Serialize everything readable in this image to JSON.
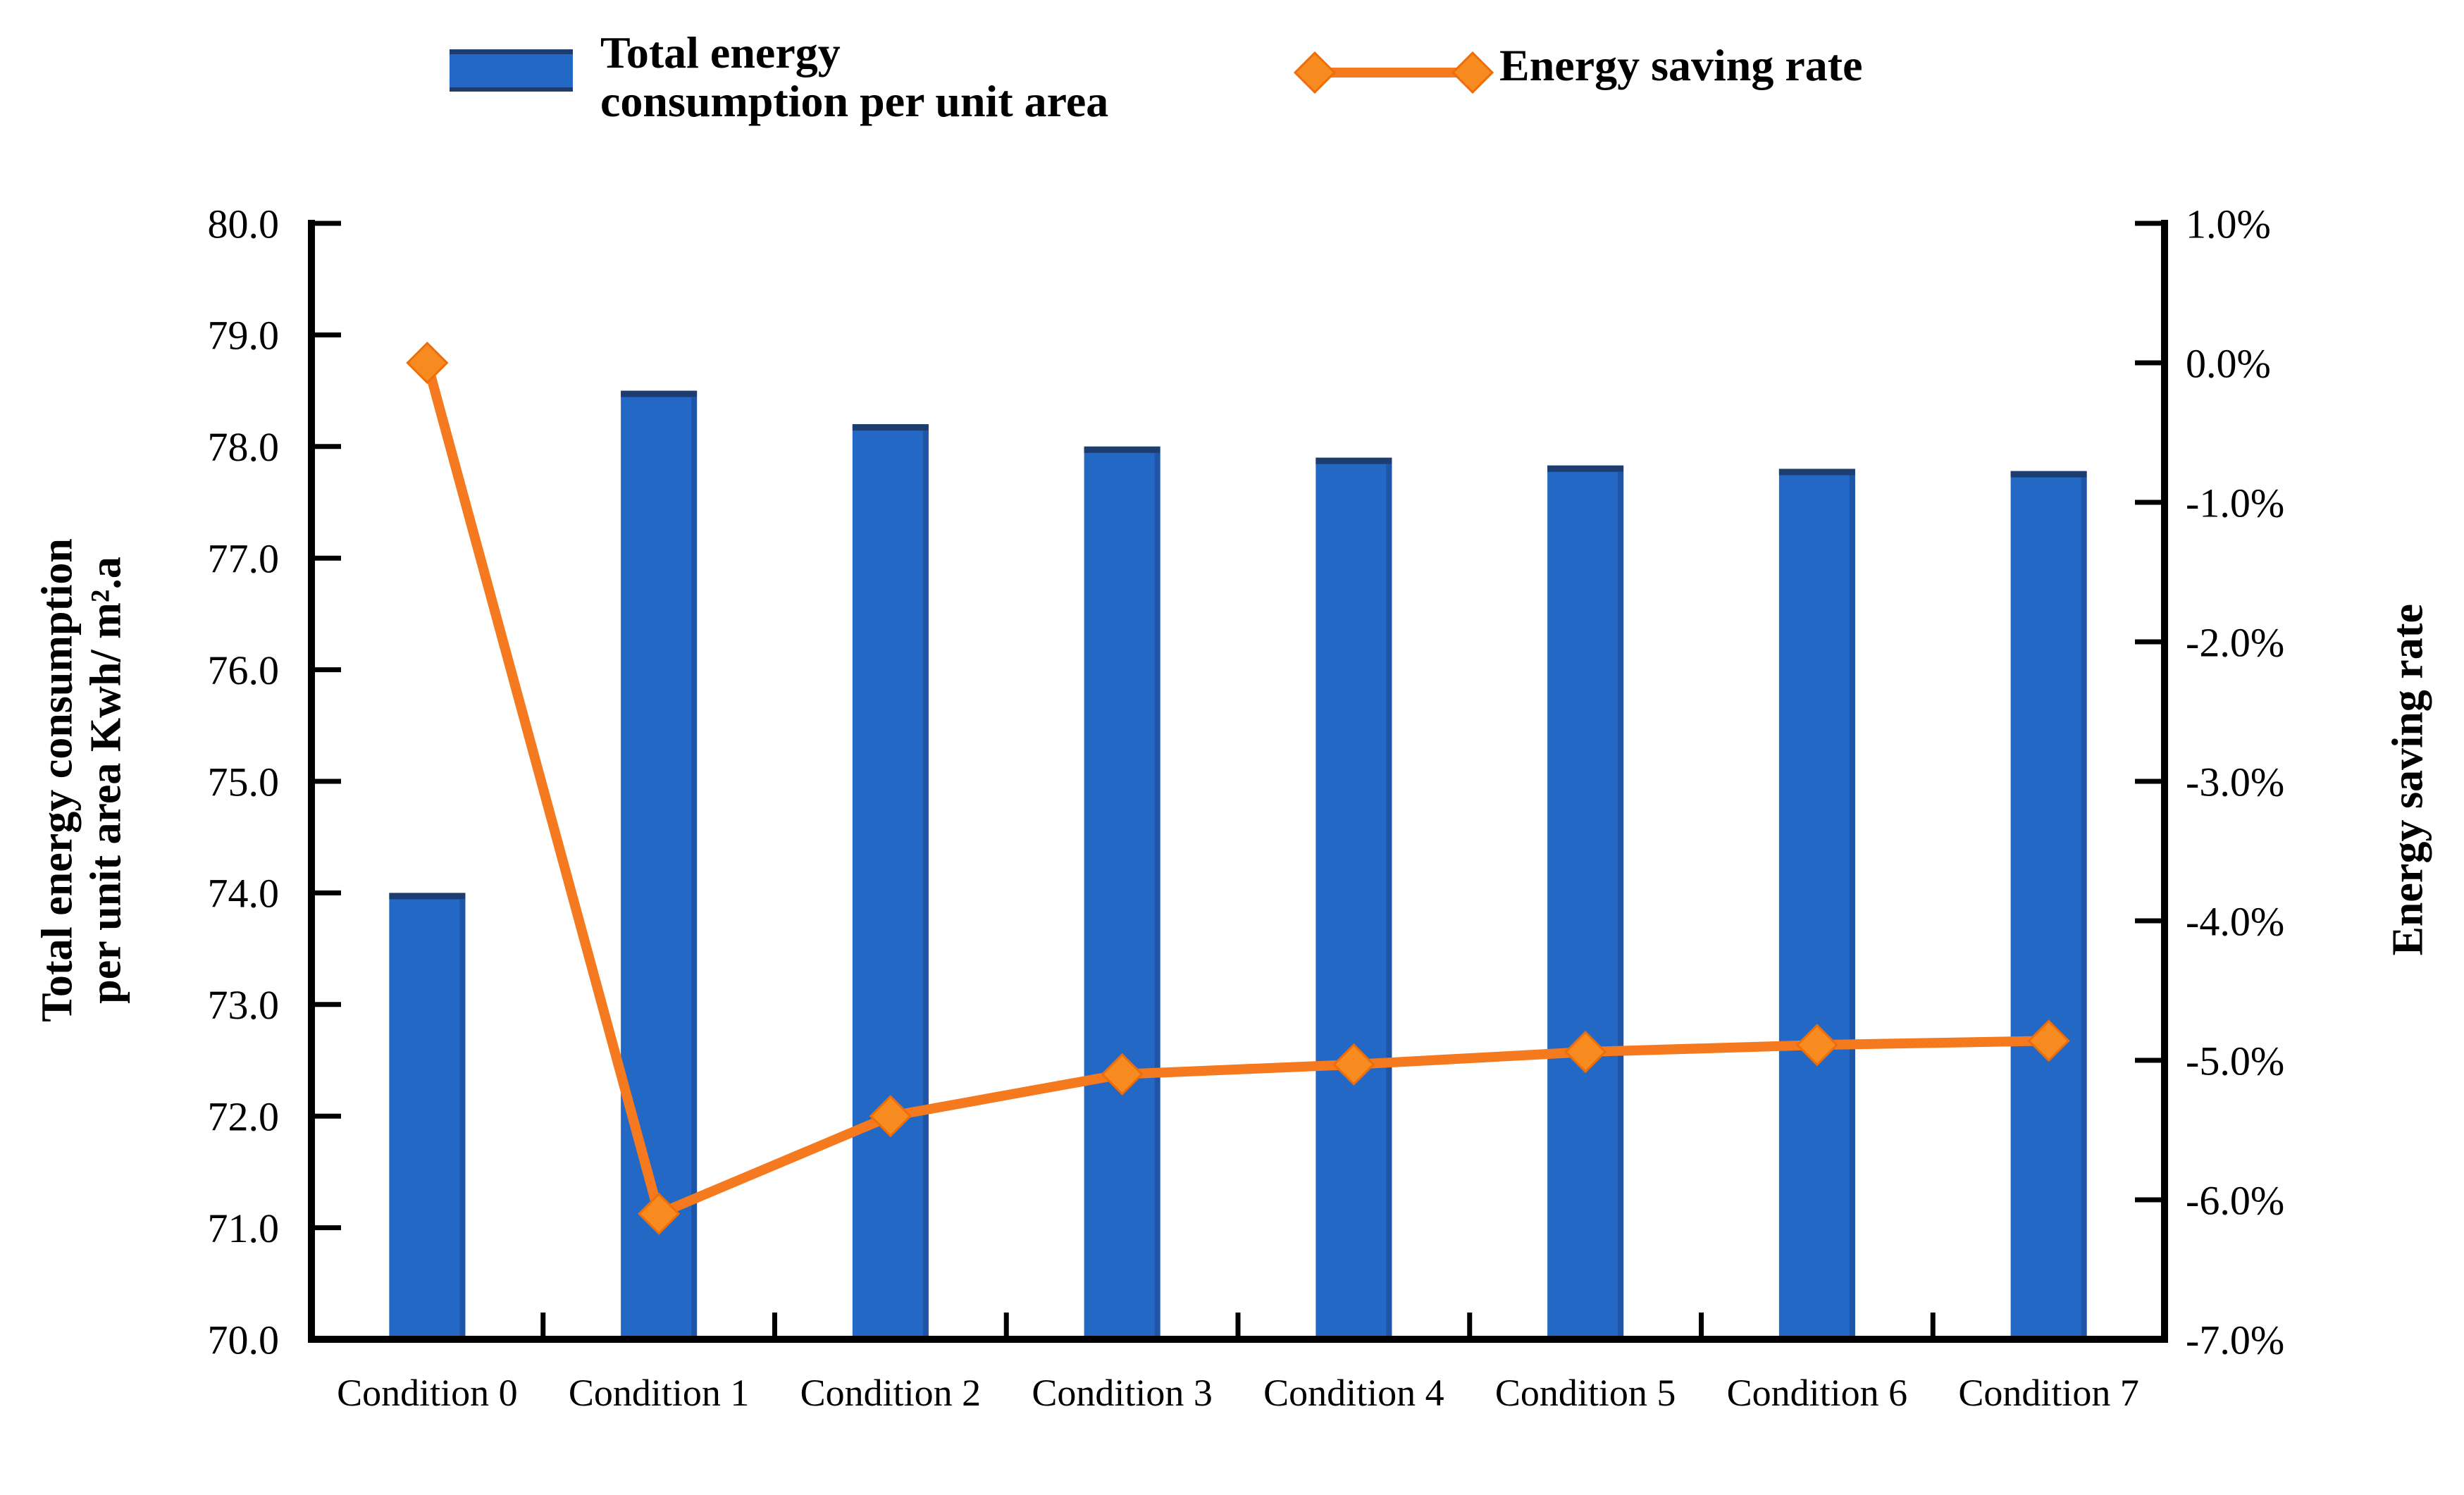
{
  "legend": {
    "items": [
      {
        "label": "Total energy\nconsumption per unit area",
        "series": "bar"
      },
      {
        "label": "Energy saving rate",
        "series": "line"
      }
    ]
  },
  "chart_data": {
    "type": "combo",
    "categories": [
      "Condition 0",
      "Condition 1",
      "Condition 2",
      "Condition 3",
      "Condition 4",
      "Condition 5",
      "Condition 6",
      "Condition 7"
    ],
    "series": [
      {
        "name": "Total energy consumption per unit area",
        "type": "bar",
        "y_axis": "left",
        "color": "#2368c4",
        "values": [
          74.0,
          78.5,
          78.2,
          78.0,
          77.9,
          77.83,
          77.8,
          77.78
        ]
      },
      {
        "name": "Energy saving rate",
        "type": "line",
        "y_axis": "right",
        "marker": "diamond",
        "color": "#f5791e",
        "values": [
          0.0,
          -6.1,
          -5.4,
          -5.1,
          -5.03,
          -4.94,
          -4.89,
          -4.86
        ]
      }
    ],
    "left_axis": {
      "title": "Total energy consumption\nper unit area Kwh/ m².a",
      "min": 70,
      "max": 80,
      "tick_step": 1.0,
      "tick_labels": [
        "80.0",
        "79.0",
        "78.0",
        "77.0",
        "76.0",
        "75.0",
        "74.0",
        "73.0",
        "72.0",
        "71.0",
        "70.0"
      ]
    },
    "right_axis": {
      "title": "Energy saving rate",
      "min": -7,
      "max": 1,
      "tick_step": 1.0,
      "tick_labels": [
        "1.0%",
        "0.0%",
        "-1.0%",
        "-2.0%",
        "-3.0%",
        "-4.0%",
        "-5.0%",
        "-6.0%",
        "-7.0%"
      ]
    },
    "grid": false,
    "legend_position": "top"
  },
  "colors": {
    "bar": "#2368c4",
    "bar_edge_dark": "#1d3c6f",
    "bar_edge_right": "#1f55a6",
    "line": "#f5791e",
    "marker_fill": "#f78b1f",
    "marker_stroke": "#ee6d09",
    "axis": "#000000"
  }
}
